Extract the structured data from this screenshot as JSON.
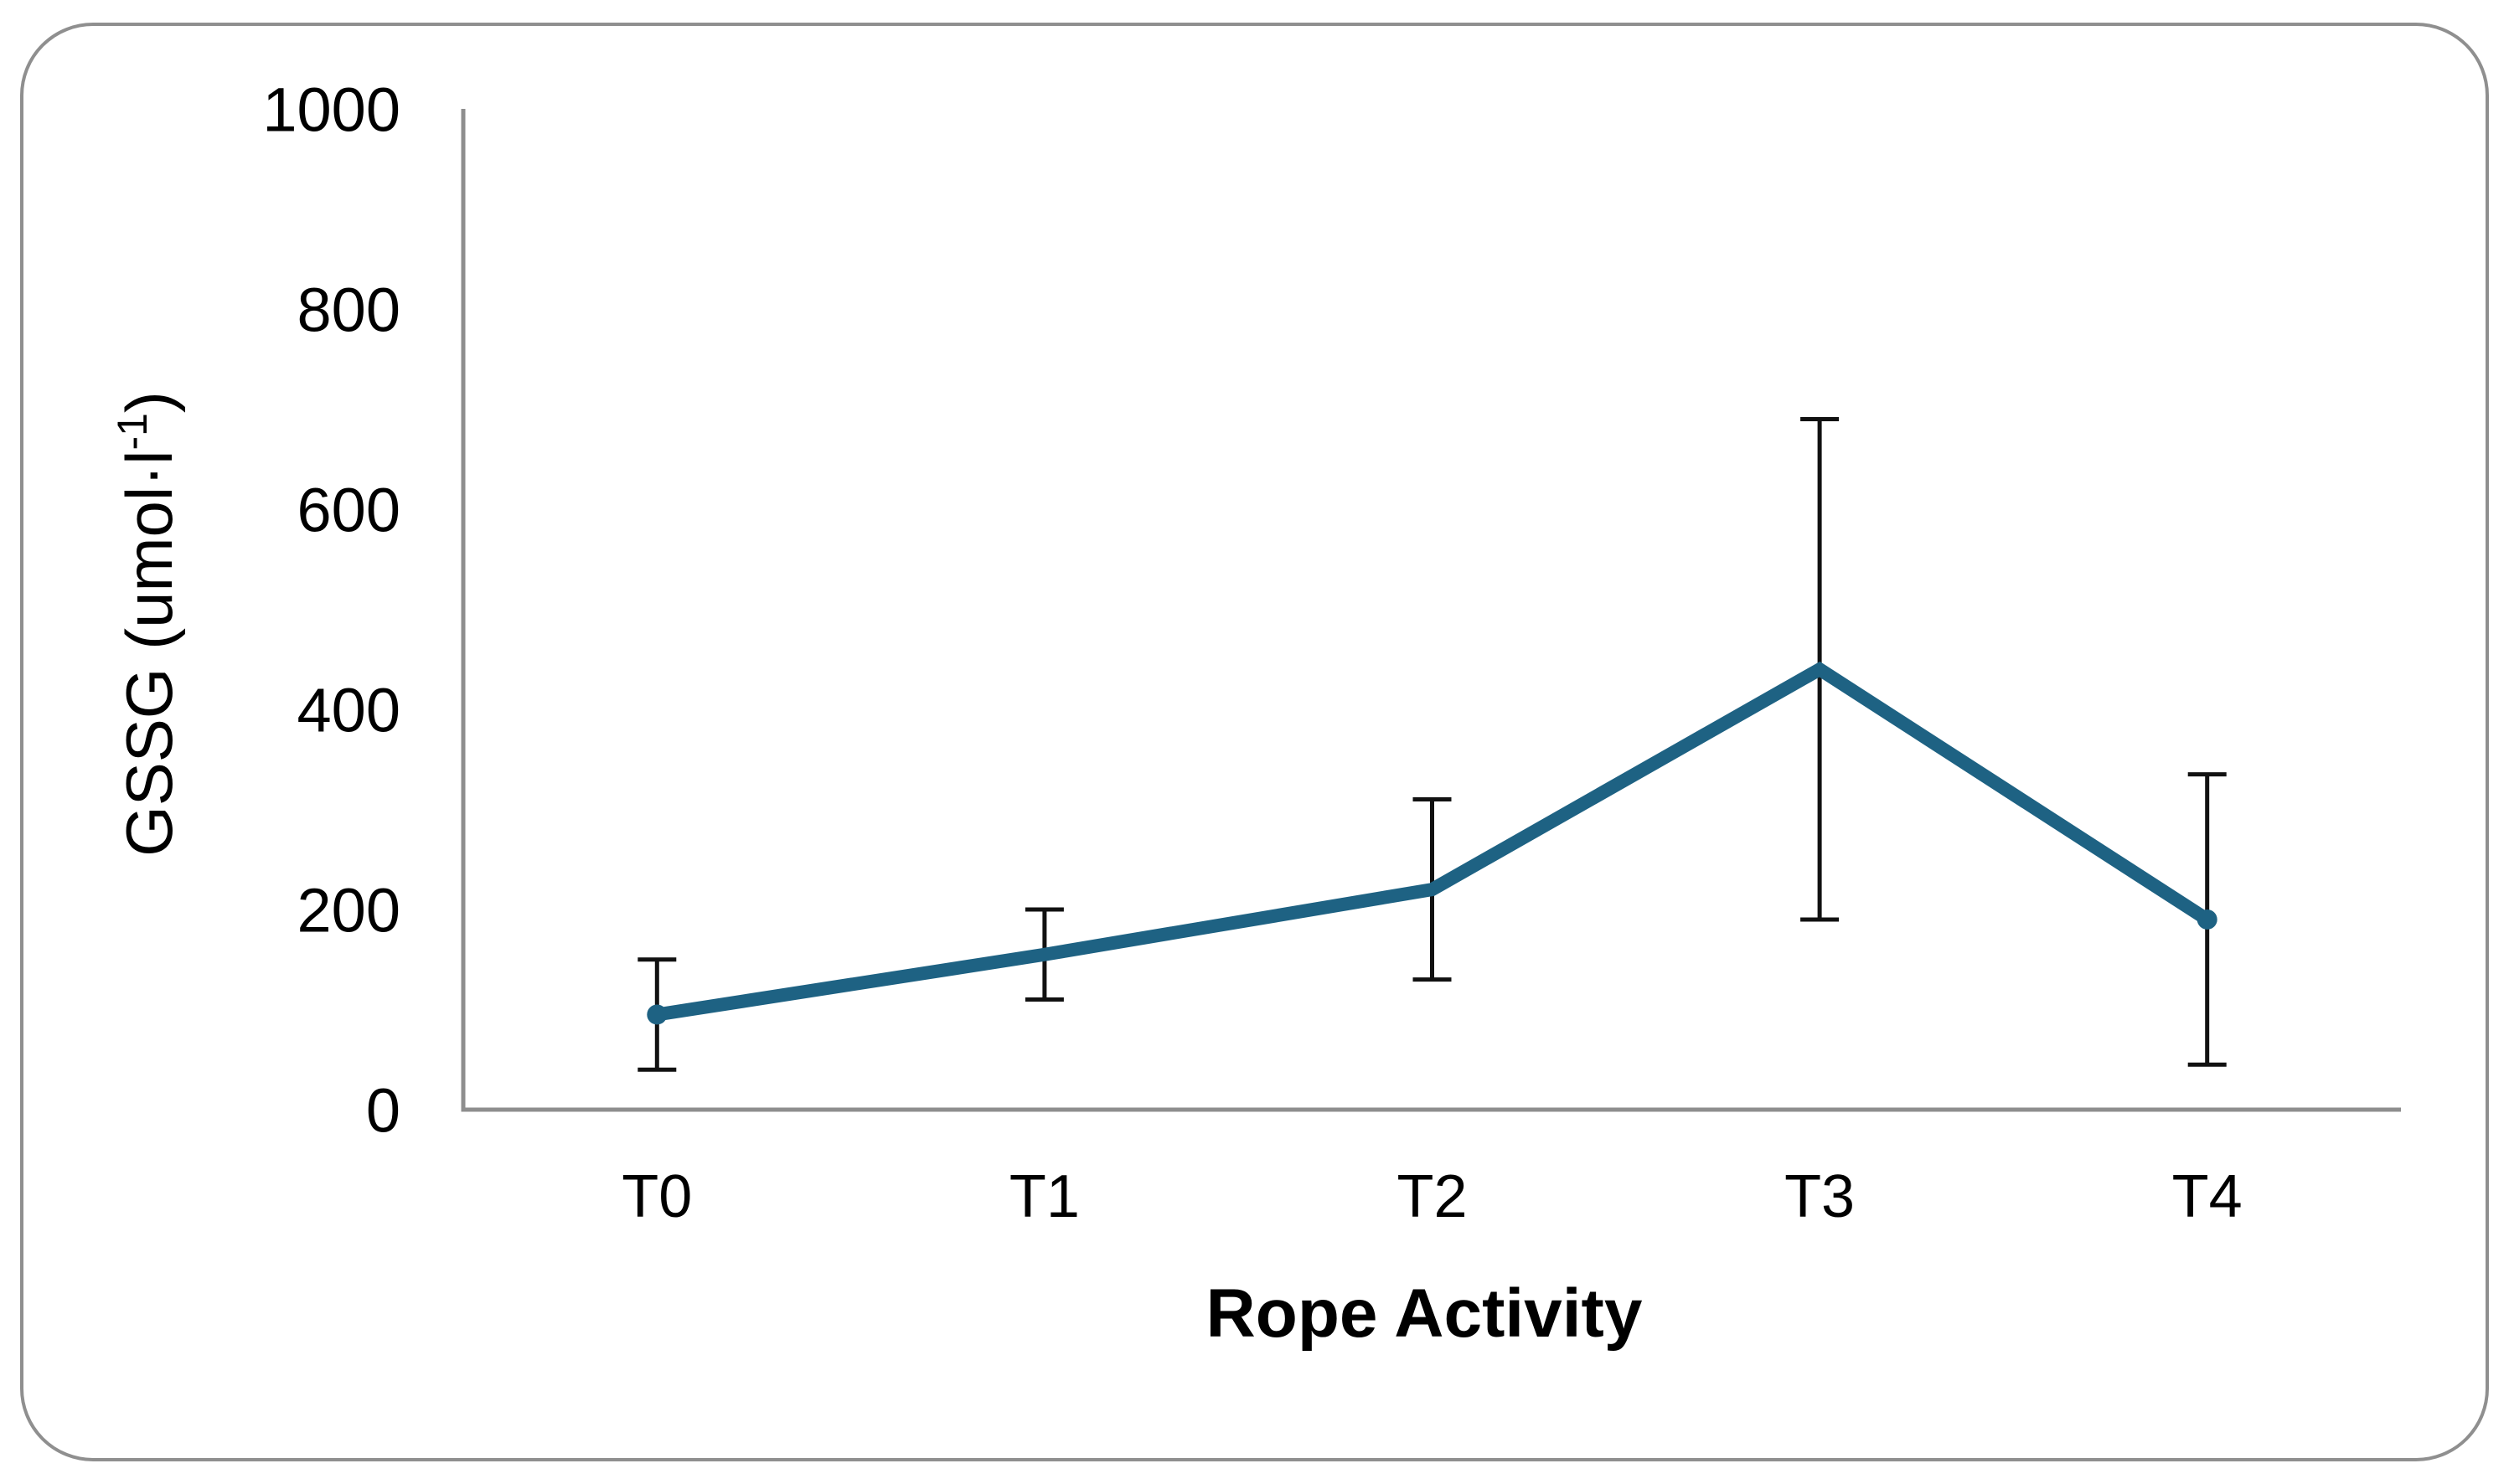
{
  "figure": {
    "background": "#ffffff",
    "frame_border_color": "#8f8f8f"
  },
  "chart_data": {
    "type": "line",
    "title": "",
    "xlabel": "Rope Activity",
    "ylabel": "GSSG (umol·l⁻¹)",
    "ylabel_parts": {
      "main": "GSSG (umol·l",
      "superscript": "-1",
      "end": ")"
    },
    "categories": [
      "T0",
      "T1",
      "T2",
      "T3",
      "T4"
    ],
    "series": [
      {
        "name": "GSSG",
        "values": [
          95,
          155,
          220,
          440,
          190
        ],
        "error_low": [
          40,
          110,
          130,
          190,
          45
        ],
        "error_high": [
          150,
          200,
          310,
          690,
          335
        ],
        "color": "#1e6283"
      }
    ],
    "ylim": [
      0,
      1000
    ],
    "yticks": [
      0,
      200,
      400,
      600,
      800,
      1000
    ],
    "grid": false,
    "legend": "none",
    "axis_color": "#8e8e8e",
    "error_bar_color": "#111111",
    "marker": "endpoint-dots"
  }
}
